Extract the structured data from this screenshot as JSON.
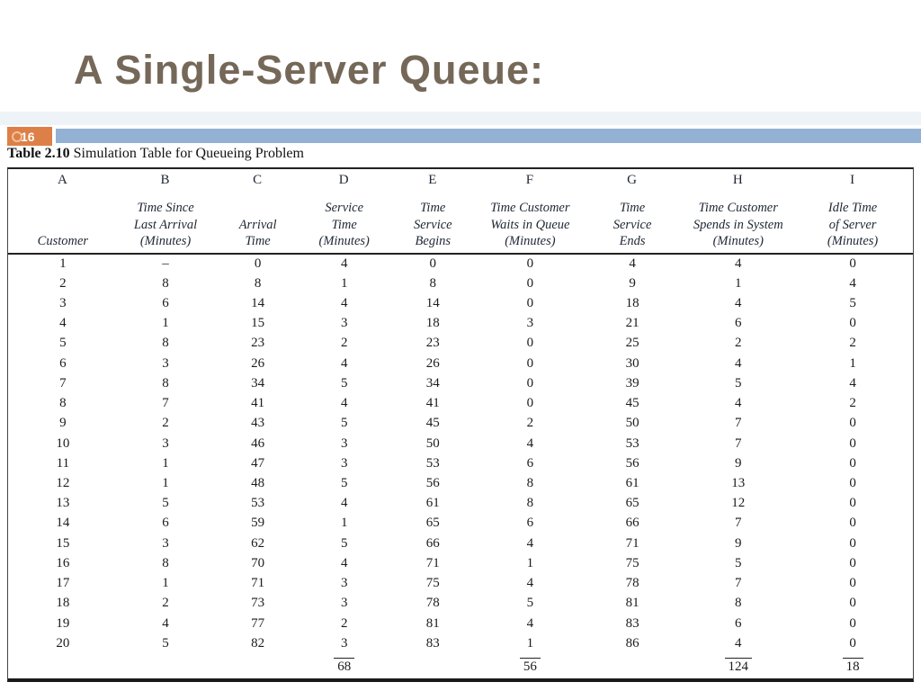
{
  "slide": {
    "title": "A Single-Server Queue:",
    "page_number": "16",
    "colors": {
      "accent_orange": "#dd8047",
      "bar_blue": "#93b1d3",
      "title_brown": "#756858"
    }
  },
  "table": {
    "caption_bold": "Table 2.10",
    "caption_rest": " Simulation Table for Queueing Problem",
    "columns": [
      {
        "letter": "A",
        "lines": [
          "Customer"
        ]
      },
      {
        "letter": "B",
        "lines": [
          "Time Since",
          "Last Arrival",
          "(Minutes)"
        ]
      },
      {
        "letter": "C",
        "lines": [
          "Arrival",
          "Time"
        ]
      },
      {
        "letter": "D",
        "lines": [
          "Service",
          "Time",
          "(Minutes)"
        ]
      },
      {
        "letter": "E",
        "lines": [
          "Time",
          "Service",
          "Begins"
        ]
      },
      {
        "letter": "F",
        "lines": [
          "Time Customer",
          "Waits in Queue",
          "(Minutes)"
        ]
      },
      {
        "letter": "G",
        "lines": [
          "Time",
          "Service",
          "Ends"
        ]
      },
      {
        "letter": "H",
        "lines": [
          "Time Customer",
          "Spends in System",
          "(Minutes)"
        ]
      },
      {
        "letter": "I",
        "lines": [
          "Idle Time",
          "of Server",
          "(Minutes)"
        ]
      }
    ],
    "rows": [
      [
        "1",
        "–",
        "0",
        "4",
        "0",
        "0",
        "4",
        "4",
        "0"
      ],
      [
        "2",
        "8",
        "8",
        "1",
        "8",
        "0",
        "9",
        "1",
        "4"
      ],
      [
        "3",
        "6",
        "14",
        "4",
        "14",
        "0",
        "18",
        "4",
        "5"
      ],
      [
        "4",
        "1",
        "15",
        "3",
        "18",
        "3",
        "21",
        "6",
        "0"
      ],
      [
        "5",
        "8",
        "23",
        "2",
        "23",
        "0",
        "25",
        "2",
        "2"
      ],
      [
        "6",
        "3",
        "26",
        "4",
        "26",
        "0",
        "30",
        "4",
        "1"
      ],
      [
        "7",
        "8",
        "34",
        "5",
        "34",
        "0",
        "39",
        "5",
        "4"
      ],
      [
        "8",
        "7",
        "41",
        "4",
        "41",
        "0",
        "45",
        "4",
        "2"
      ],
      [
        "9",
        "2",
        "43",
        "5",
        "45",
        "2",
        "50",
        "7",
        "0"
      ],
      [
        "10",
        "3",
        "46",
        "3",
        "50",
        "4",
        "53",
        "7",
        "0"
      ],
      [
        "11",
        "1",
        "47",
        "3",
        "53",
        "6",
        "56",
        "9",
        "0"
      ],
      [
        "12",
        "1",
        "48",
        "5",
        "56",
        "8",
        "61",
        "13",
        "0"
      ],
      [
        "13",
        "5",
        "53",
        "4",
        "61",
        "8",
        "65",
        "12",
        "0"
      ],
      [
        "14",
        "6",
        "59",
        "1",
        "65",
        "6",
        "66",
        "7",
        "0"
      ],
      [
        "15",
        "3",
        "62",
        "5",
        "66",
        "4",
        "71",
        "9",
        "0"
      ],
      [
        "16",
        "8",
        "70",
        "4",
        "71",
        "1",
        "75",
        "5",
        "0"
      ],
      [
        "17",
        "1",
        "71",
        "3",
        "75",
        "4",
        "78",
        "7",
        "0"
      ],
      [
        "18",
        "2",
        "73",
        "3",
        "78",
        "5",
        "81",
        "8",
        "0"
      ],
      [
        "19",
        "4",
        "77",
        "2",
        "81",
        "4",
        "83",
        "6",
        "0"
      ],
      [
        "20",
        "5",
        "82",
        "3",
        "83",
        "1",
        "86",
        "4",
        "0"
      ]
    ],
    "totals": [
      "",
      "",
      "",
      "68",
      "",
      "56",
      "",
      "124",
      "18"
    ]
  }
}
